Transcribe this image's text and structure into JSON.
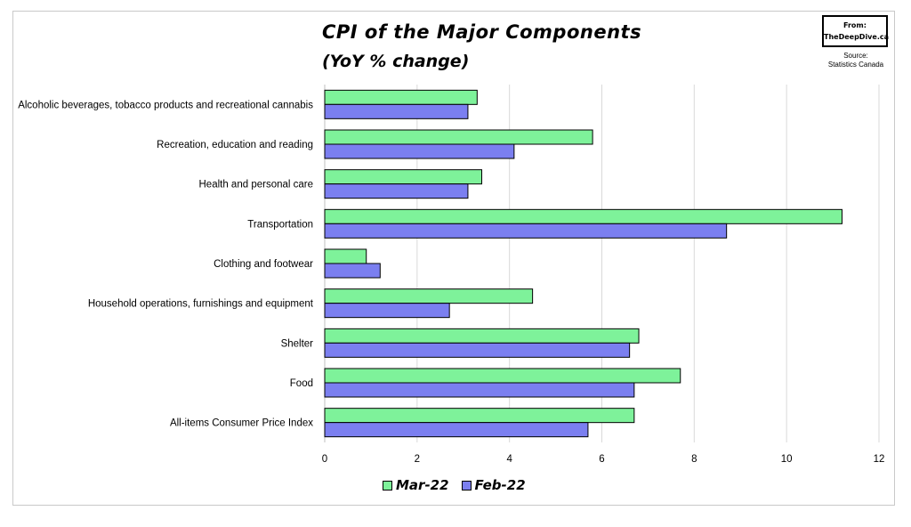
{
  "header": {
    "title": "CPI of the Major Components",
    "subtitle": "(YoY % change)"
  },
  "brand": {
    "line1": "From:",
    "line2": "TheDeepDive.ca"
  },
  "source": {
    "line1": "Source:",
    "line2": "Statistics Canada"
  },
  "colors": {
    "mar22": "#7ef29a",
    "feb22": "#7b7ff0",
    "grid": "#d9d9d9"
  },
  "chart_data": {
    "type": "bar",
    "orientation": "horizontal",
    "title": "CPI of the Major Components",
    "subtitle": "(YoY % change)",
    "categories": [
      "Alcoholic beverages, tobacco products and recreational cannabis",
      "Recreation, education and reading",
      "Health and personal care",
      "Transportation",
      "Clothing and footwear",
      "Household operations, furnishings and equipment",
      "Shelter",
      "Food",
      "All-items Consumer Price Index"
    ],
    "series": [
      {
        "name": "Mar-22",
        "values": [
          3.3,
          5.8,
          3.4,
          11.2,
          0.9,
          4.5,
          6.8,
          7.7,
          6.7
        ]
      },
      {
        "name": "Feb-22",
        "values": [
          3.1,
          4.1,
          3.1,
          8.7,
          1.2,
          2.7,
          6.6,
          6.7,
          5.7
        ]
      }
    ],
    "xlim": [
      0,
      12
    ],
    "xticks": [
      0,
      2,
      4,
      6,
      8,
      10,
      12
    ],
    "grid": true,
    "legend_position": "bottom"
  }
}
